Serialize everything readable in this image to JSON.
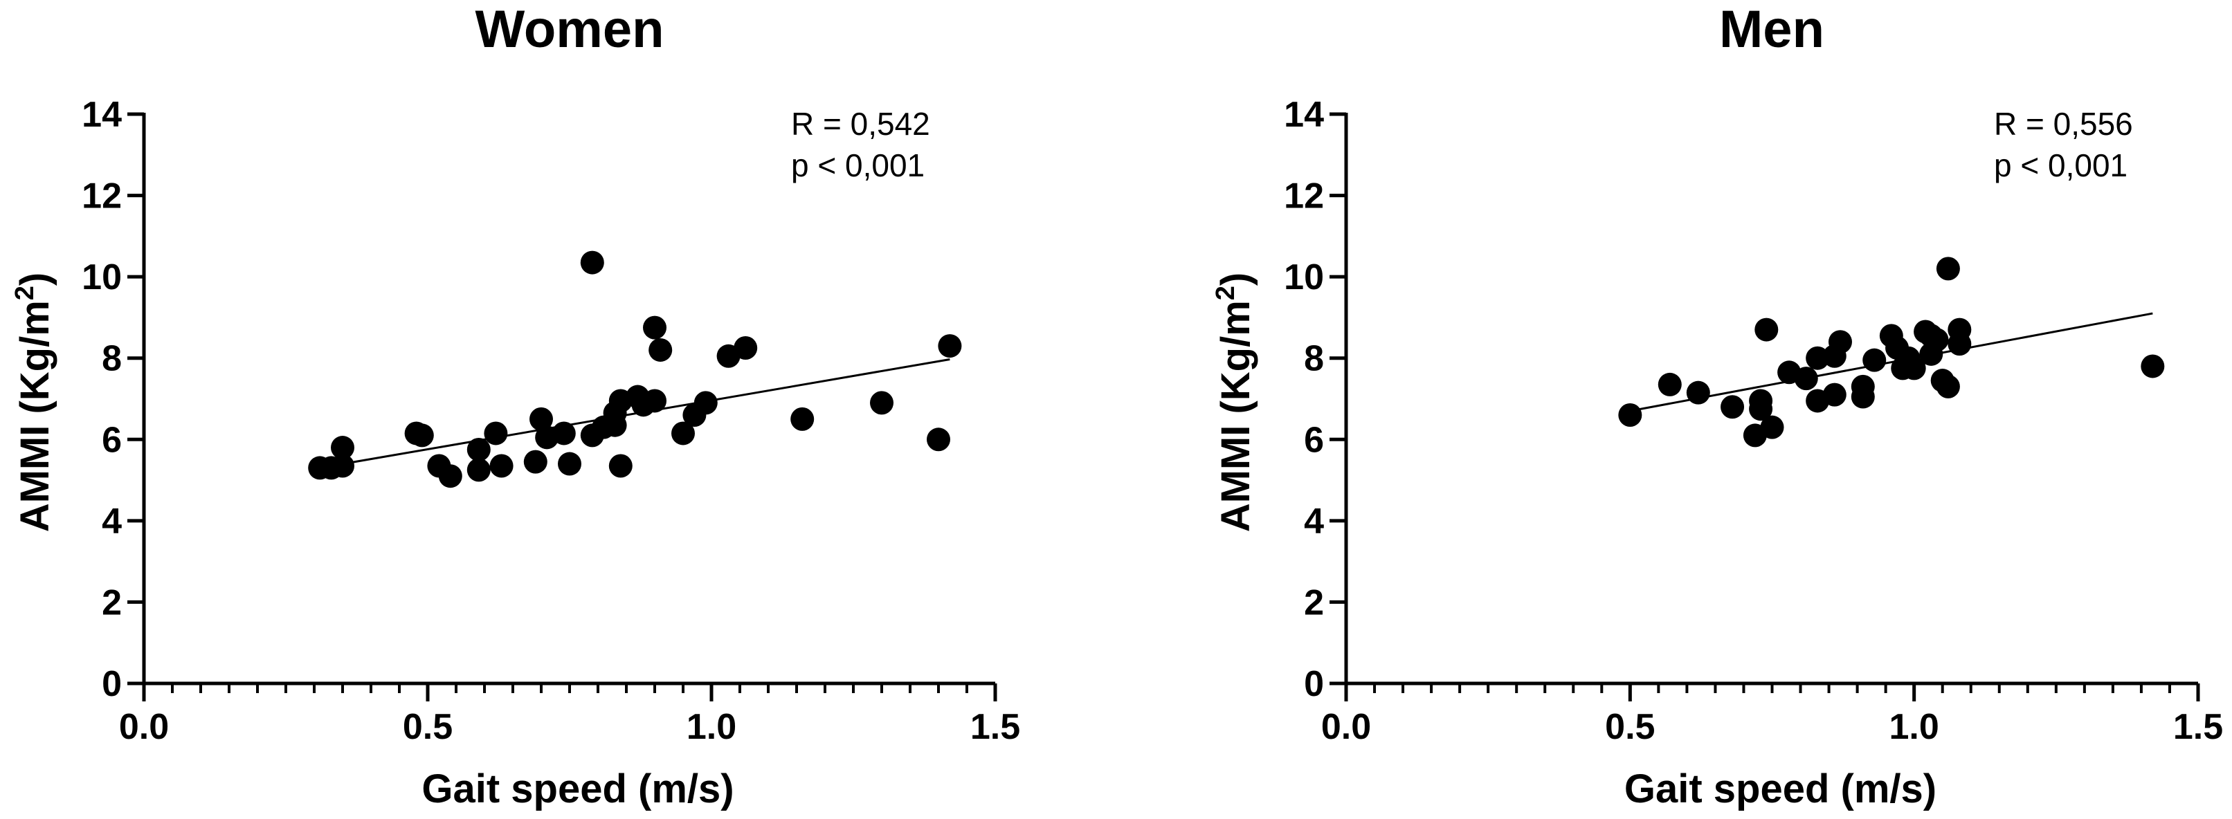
{
  "chart_data": [
    {
      "type": "scatter",
      "title": "Women",
      "xlabel": "Gait speed (m/s)",
      "ylabel_main": "AMMI (Kg/m",
      "ylabel_sup": "2",
      "ylabel_close": ")",
      "xlim": [
        0.0,
        1.5
      ],
      "ylim": [
        0,
        14
      ],
      "xticks": [
        0.0,
        0.5,
        1.0,
        1.5
      ],
      "xtick_labels": [
        "0.0",
        "0.5",
        "1.0",
        "1.5"
      ],
      "yticks": [
        0,
        2,
        4,
        6,
        8,
        10,
        12,
        14
      ],
      "ytick_labels": [
        "0",
        "2",
        "4",
        "6",
        "8",
        "10",
        "12",
        "14"
      ],
      "annotation": [
        "R = 0,542",
        "p < 0,001"
      ],
      "fit_line": {
        "x": [
          0.33,
          1.42
        ],
        "y": [
          5.35,
          7.97
        ]
      },
      "points": [
        [
          0.31,
          5.3
        ],
        [
          0.33,
          5.3
        ],
        [
          0.35,
          5.35
        ],
        [
          0.35,
          5.8
        ],
        [
          0.48,
          6.15
        ],
        [
          0.49,
          6.1
        ],
        [
          0.52,
          5.35
        ],
        [
          0.54,
          5.1
        ],
        [
          0.59,
          5.25
        ],
        [
          0.59,
          5.75
        ],
        [
          0.62,
          6.15
        ],
        [
          0.63,
          5.35
        ],
        [
          0.69,
          5.45
        ],
        [
          0.7,
          6.5
        ],
        [
          0.71,
          6.05
        ],
        [
          0.74,
          6.15
        ],
        [
          0.75,
          5.4
        ],
        [
          0.79,
          10.35
        ],
        [
          0.79,
          6.1
        ],
        [
          0.81,
          6.3
        ],
        [
          0.83,
          6.65
        ],
        [
          0.83,
          6.35
        ],
        [
          0.84,
          6.95
        ],
        [
          0.84,
          5.35
        ],
        [
          0.87,
          7.05
        ],
        [
          0.88,
          6.85
        ],
        [
          0.9,
          8.75
        ],
        [
          0.9,
          6.95
        ],
        [
          0.91,
          8.2
        ],
        [
          0.95,
          6.15
        ],
        [
          0.97,
          6.6
        ],
        [
          0.99,
          6.9
        ],
        [
          1.03,
          8.05
        ],
        [
          1.06,
          8.25
        ],
        [
          1.16,
          6.5
        ],
        [
          1.3,
          6.9
        ],
        [
          1.4,
          6.0
        ],
        [
          1.42,
          8.3
        ]
      ]
    },
    {
      "type": "scatter",
      "title": "Men",
      "xlabel": "Gait speed (m/s)",
      "ylabel_main": "AMMI (Kg/m",
      "ylabel_sup": "2",
      "ylabel_close": ")",
      "xlim": [
        0.0,
        1.5
      ],
      "ylim": [
        0,
        14
      ],
      "xticks": [
        0.0,
        0.5,
        1.0,
        1.5
      ],
      "xtick_labels": [
        "0.0",
        "0.5",
        "1.0",
        "1.5"
      ],
      "yticks": [
        0,
        2,
        4,
        6,
        8,
        10,
        12,
        14
      ],
      "ytick_labels": [
        "0",
        "2",
        "4",
        "6",
        "8",
        "10",
        "12",
        "14"
      ],
      "annotation": [
        "R = 0,556",
        "p < 0,001"
      ],
      "fit_line": {
        "x": [
          0.5,
          1.42
        ],
        "y": [
          6.7,
          9.1
        ]
      },
      "points": [
        [
          0.5,
          6.6
        ],
        [
          0.57,
          7.35
        ],
        [
          0.62,
          7.15
        ],
        [
          0.68,
          6.8
        ],
        [
          0.72,
          6.1
        ],
        [
          0.73,
          6.95
        ],
        [
          0.73,
          6.75
        ],
        [
          0.74,
          8.7
        ],
        [
          0.75,
          6.3
        ],
        [
          0.78,
          7.65
        ],
        [
          0.81,
          7.5
        ],
        [
          0.83,
          8.0
        ],
        [
          0.83,
          6.95
        ],
        [
          0.86,
          8.05
        ],
        [
          0.86,
          7.1
        ],
        [
          0.87,
          8.4
        ],
        [
          0.91,
          7.3
        ],
        [
          0.91,
          7.05
        ],
        [
          0.93,
          7.95
        ],
        [
          0.96,
          8.55
        ],
        [
          0.97,
          8.25
        ],
        [
          0.98,
          7.75
        ],
        [
          0.99,
          8.0
        ],
        [
          1.0,
          7.75
        ],
        [
          1.02,
          8.65
        ],
        [
          1.03,
          8.1
        ],
        [
          1.03,
          8.55
        ],
        [
          1.04,
          8.45
        ],
        [
          1.05,
          7.45
        ],
        [
          1.06,
          10.2
        ],
        [
          1.06,
          7.3
        ],
        [
          1.08,
          8.7
        ],
        [
          1.08,
          8.35
        ],
        [
          1.42,
          7.8
        ]
      ]
    }
  ]
}
